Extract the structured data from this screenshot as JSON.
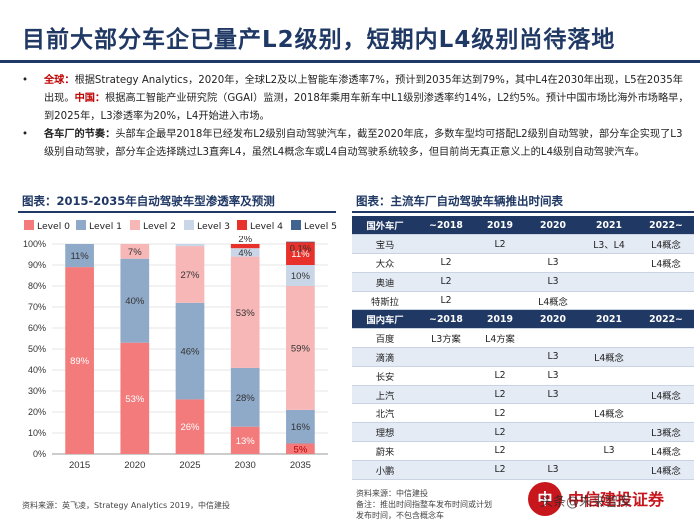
{
  "title": "目前大部分车企已量产L2级别，短期内L4级别尚待落地",
  "bullets": [
    {
      "dot": "•",
      "kw1": "全球：",
      "t1": "根据Strategy Analytics，2020年，全球L2及以上智能车渗透率7%，预计到2035年达到79%，其中L4在2030年出现，L5在2035年出现。",
      "kw2": "中国：",
      "t2": "根据高工智能产业研究院（GGAI）监测，2018年乘用车新车中L1级别渗透率约14%，L2约5%。预计中国市场比海外市场略早，到2025年，L3渗透率为20%，L4开始进入市场。"
    },
    {
      "dot": "•",
      "kw1": "各车厂的节奏：",
      "t1": "头部车企最早2018年已经发布L2级别自动驾驶汽车，截至2020年底，多数车型均可搭配L2级别自动驾驶，部分车企实现了L3级别自动驾驶，部分车企选择跳过L3直奔L4，虽然L4概念车或L4自动驾驶系统较多，但目前尚无真正意义上的L4级别自动驾驶汽车。"
    }
  ],
  "left_title": "图表：2015-2035年自动驾驶车型渗透率及预测",
  "right_title": "图表：主流车厂自动驾驶车辆推出时间表",
  "chart_data": {
    "type": "bar",
    "stacked": true,
    "title": "2015-2035年自动驾驶车型渗透率及预测",
    "categories": [
      "2015",
      "2020",
      "2025",
      "2030",
      "2035"
    ],
    "series": [
      {
        "name": "Level 0",
        "color": "#f37b7b",
        "values": [
          89,
          53,
          26,
          13,
          5
        ],
        "labels": [
          "89%",
          "53%",
          "26%",
          "13%",
          "5%"
        ]
      },
      {
        "name": "Level 1",
        "color": "#8fa9c8",
        "values": [
          11,
          40,
          46,
          28,
          16
        ],
        "labels": [
          "11%",
          "40%",
          "46%",
          "28%",
          "16%"
        ]
      },
      {
        "name": "Level 2",
        "color": "#f7b7b7",
        "values": [
          0,
          7,
          27,
          53,
          59
        ],
        "labels": [
          "",
          "7%",
          "27%",
          "53%",
          "59%"
        ]
      },
      {
        "name": "Level 3",
        "color": "#c9d6e8",
        "values": [
          0,
          0,
          1,
          4,
          10
        ],
        "labels": [
          "",
          "",
          "",
          "4%",
          "10%"
        ]
      },
      {
        "name": "Level 4",
        "color": "#e8312a",
        "values": [
          0,
          0,
          0,
          2,
          11
        ],
        "labels": [
          "",
          "",
          "",
          "2%",
          "11%"
        ]
      },
      {
        "name": "Level 5",
        "color": "#41638f",
        "values": [
          0,
          0,
          0,
          0,
          0.1
        ],
        "labels": [
          "",
          "",
          "",
          "",
          "0.1%"
        ]
      }
    ],
    "ylim": [
      0,
      100
    ],
    "yticks": [
      "0%",
      "10%",
      "20%",
      "30%",
      "40%",
      "50%",
      "60%",
      "70%",
      "80%",
      "90%",
      "100%"
    ],
    "xlabel": "",
    "ylabel": "",
    "legend_position": "top"
  },
  "left_source": "资料来源：英飞凌，Strategy Analytics 2019，中信建投",
  "table": {
    "foreign_header": [
      "国外车厂",
      "~2018",
      "2019",
      "2020",
      "2021",
      "2022~"
    ],
    "foreign_rows": [
      [
        "宝马",
        "",
        "L2",
        "",
        "L3、L4",
        "L4概念"
      ],
      [
        "大众",
        "L2",
        "",
        "L3",
        "",
        "L4概念"
      ],
      [
        "奥迪",
        "L2",
        "",
        "L3",
        "",
        ""
      ],
      [
        "特斯拉",
        "L2",
        "",
        "L4概念",
        "",
        ""
      ]
    ],
    "domestic_header": [
      "国内车厂",
      "~2018",
      "2019",
      "2020",
      "2021",
      "2022~"
    ],
    "domestic_rows": [
      [
        "百度",
        "L3方案",
        "L4方案",
        "",
        "",
        ""
      ],
      [
        "滴滴",
        "",
        "",
        "L3",
        "L4概念",
        ""
      ],
      [
        "长安",
        "",
        "L2",
        "L3",
        "",
        ""
      ],
      [
        "上汽",
        "",
        "L2",
        "L3",
        "",
        "L4概念"
      ],
      [
        "北汽",
        "",
        "L2",
        "",
        "L4概念",
        ""
      ],
      [
        "理想",
        "",
        "L2",
        "",
        "",
        "L3概念"
      ],
      [
        "蔚来",
        "",
        "L2",
        "",
        "L3",
        "L4概念"
      ],
      [
        "小鹏",
        "",
        "L2",
        "L3",
        "",
        "L4概念"
      ]
    ]
  },
  "right_source": [
    "资料来源：中信建投",
    "备注：推出时间指整车发布时间或计划",
    "发布时间，不包含概念车"
  ],
  "logo": {
    "mark": "中",
    "text": "中信建投证券"
  },
  "watermark": "头条@未来智库"
}
